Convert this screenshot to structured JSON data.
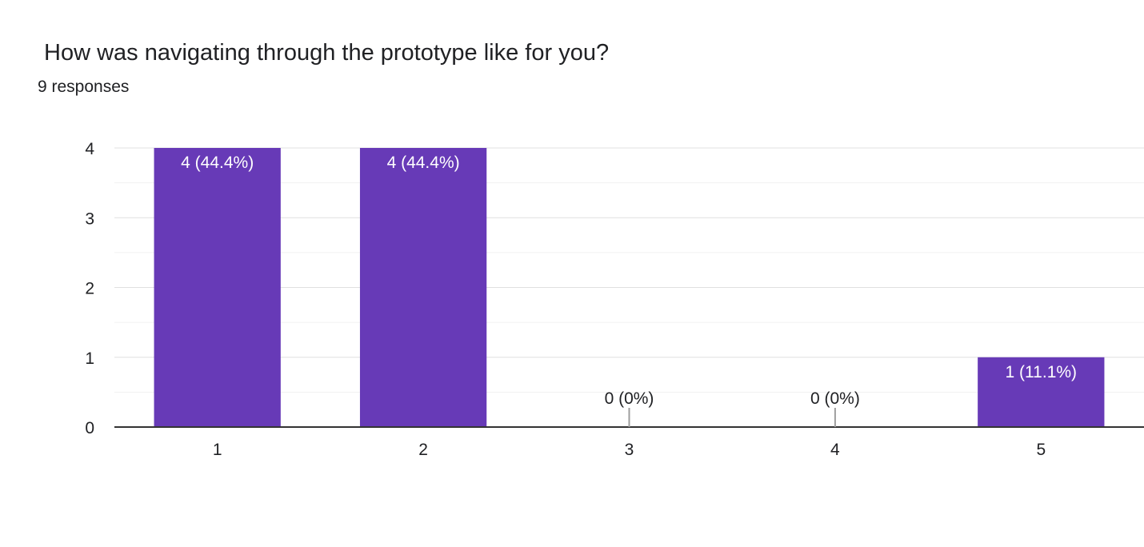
{
  "question": {
    "title": "How was navigating through the prototype like for you?",
    "responses": "9 responses"
  },
  "chart_data": {
    "type": "bar",
    "categories": [
      "1",
      "2",
      "3",
      "4",
      "5"
    ],
    "values": [
      4,
      4,
      0,
      0,
      1
    ],
    "data_labels": [
      "4 (44.4%)",
      "4 (44.4%)",
      "0 (0%)",
      "0 (0%)",
      "1 (11.1%)"
    ],
    "yticks": [
      0,
      1,
      2,
      3,
      4
    ],
    "ylim": [
      0,
      4
    ],
    "grid": true,
    "bar_color": "#673ab7",
    "inside_label_color": "#ffffff",
    "outside_label_color": "#202124"
  }
}
